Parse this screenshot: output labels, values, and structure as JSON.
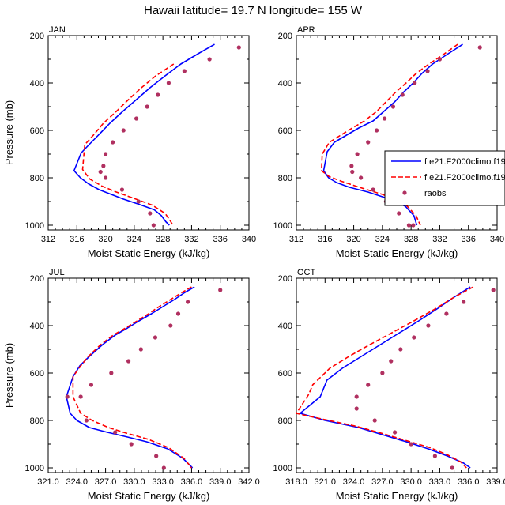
{
  "title": "Hawaii  latitude= 19.7 N longitude= 155 W",
  "legend": [
    {
      "label": "f.e21.F2000climo.f19",
      "color": "#0000ff",
      "style": "solid"
    },
    {
      "label": "f.e21.F2000climo.f19",
      "color": "#ff0000",
      "style": "dashed"
    },
    {
      "label": "raobs",
      "color": "#b03060",
      "style": "marker"
    }
  ],
  "chart_data": [
    {
      "type": "line",
      "panel_label": "JAN",
      "xlabel": "Moist Static Energy (kJ/kg)",
      "ylabel": "Pressure (mb)",
      "xlim": [
        312,
        340
      ],
      "ylim": [
        1020,
        200
      ],
      "xticks": [
        "312",
        "316",
        "320",
        "324",
        "328",
        "332",
        "336",
        "340"
      ],
      "yticks": [
        "200",
        "400",
        "600",
        "800",
        "1000"
      ],
      "series": [
        {
          "name": "f.e21.F2000climo.f19",
          "color": "#0000ff",
          "style": "solid",
          "x": [
            335.2,
            333.0,
            330.5,
            328.3,
            326.2,
            324.3,
            322.4,
            320.6,
            319.0,
            317.7,
            316.6,
            315.6,
            316.5,
            317.6,
            319.1,
            320.8,
            322.5,
            324.5,
            326.8,
            327.8,
            328.4,
            328.9
          ],
          "y": [
            237,
            275,
            320,
            370,
            420,
            470,
            520,
            570,
            620,
            660,
            695,
            770,
            800,
            825,
            850,
            870,
            890,
            910,
            935,
            960,
            985,
            1000
          ]
        },
        {
          "name": "f.e21.F2000climo.f19",
          "color": "#ff0000",
          "style": "dashed",
          "x": [
            329.5,
            327.0,
            325.0,
            323.2,
            321.5,
            319.7,
            318.3,
            317.1,
            316.8,
            317.8,
            319.5,
            321.5,
            323.8,
            326.5,
            328.3,
            329.0,
            329.4
          ],
          "y": [
            320,
            370,
            420,
            470,
            520,
            570,
            620,
            660,
            765,
            805,
            835,
            860,
            885,
            915,
            950,
            980,
            1000
          ]
        },
        {
          "name": "raobs",
          "color": "#b03060",
          "style": "marker",
          "x": [
            338.6,
            334.5,
            331.0,
            328.8,
            327.3,
            325.8,
            324.3,
            322.5,
            321.0,
            320.0,
            319.7,
            319.3,
            320.0,
            322.3,
            324.6,
            326.2,
            326.7
          ],
          "y": [
            250,
            300,
            350,
            400,
            450,
            500,
            550,
            600,
            650,
            700,
            750,
            775,
            800,
            850,
            900,
            950,
            1000
          ]
        }
      ]
    },
    {
      "type": "line",
      "panel_label": "APR",
      "xlabel": "Moist Static Energy (kJ/kg)",
      "ylabel": "",
      "xlim": [
        312,
        340
      ],
      "ylim": [
        1020,
        200
      ],
      "xticks": [
        "312",
        "316",
        "320",
        "324",
        "328",
        "332",
        "336",
        "340"
      ],
      "yticks": [
        "200",
        "400",
        "600",
        "800",
        "1000"
      ],
      "series": [
        {
          "name": "f.e21.F2000climo.f19",
          "color": "#0000ff",
          "style": "solid",
          "x": [
            335.2,
            333.0,
            331.0,
            329.5,
            328.3,
            326.9,
            325.7,
            324.2,
            322.7,
            320.7,
            319.0,
            317.3,
            316.3,
            315.8,
            316.5,
            317.6,
            319.4,
            322.0,
            325.0,
            327.2,
            328.4,
            328.8
          ],
          "y": [
            237,
            280,
            320,
            360,
            400,
            440,
            480,
            520,
            560,
            590,
            620,
            650,
            690,
            770,
            800,
            820,
            840,
            860,
            890,
            920,
            960,
            1000
          ]
        },
        {
          "name": "f.e21.F2000climo.f19",
          "color": "#ff0000",
          "style": "dashed",
          "x": [
            334.5,
            332.5,
            330.5,
            328.7,
            327.3,
            325.8,
            324.5,
            323.2,
            321.5,
            319.8,
            318.2,
            316.6,
            315.6,
            315.5,
            316.6,
            318.3,
            320.8,
            324.0,
            327.0,
            328.7,
            329.3
          ],
          "y": [
            237,
            280,
            320,
            360,
            400,
            440,
            480,
            520,
            560,
            590,
            620,
            650,
            700,
            770,
            795,
            815,
            840,
            870,
            905,
            960,
            1000
          ]
        },
        {
          "name": "raobs",
          "color": "#b03060",
          "style": "marker",
          "x": [
            337.6,
            332.0,
            330.3,
            328.5,
            326.8,
            325.5,
            324.3,
            323.2,
            322.0,
            320.5,
            319.7,
            319.8,
            321.0,
            322.7,
            324.5,
            326.3,
            327.7,
            328.3
          ],
          "y": [
            250,
            300,
            350,
            400,
            450,
            500,
            550,
            600,
            650,
            700,
            750,
            775,
            800,
            850,
            900,
            950,
            1000,
            1000
          ]
        }
      ]
    },
    {
      "type": "line",
      "panel_label": "JUL",
      "xlabel": "Moist Static Energy (kJ/kg)",
      "ylabel": "Pressure (mb)",
      "xlim": [
        321,
        342
      ],
      "ylim": [
        1020,
        200
      ],
      "xticks": [
        "321.0",
        "324.0",
        "327.0",
        "330.0",
        "333.0",
        "336.0",
        "339.0",
        "342.0"
      ],
      "yticks": [
        "200",
        "400",
        "600",
        "800",
        "1000"
      ],
      "series": [
        {
          "name": "f.e21.F2000climo.f19",
          "color": "#0000ff",
          "style": "solid",
          "x": [
            336.3,
            335.3,
            334.2,
            333.0,
            331.8,
            330.5,
            329.3,
            328.0,
            326.7,
            325.3,
            324.3,
            323.6,
            322.9,
            323.3,
            324.0,
            325.3,
            327.2,
            329.3,
            331.3,
            333.5,
            335.1,
            336.1
          ],
          "y": [
            237,
            260,
            290,
            320,
            350,
            380,
            410,
            440,
            480,
            530,
            570,
            615,
            700,
            770,
            800,
            830,
            850,
            870,
            890,
            920,
            960,
            1000
          ]
        },
        {
          "name": "f.e21.F2000climo.f19",
          "color": "#ff0000",
          "style": "dashed",
          "x": [
            336.0,
            335.0,
            333.8,
            332.6,
            331.5,
            330.3,
            329.1,
            327.8,
            326.5,
            325.2,
            324.4,
            323.6,
            323.6,
            324.4,
            325.6,
            327.3,
            329.3,
            331.5,
            333.6,
            335.2,
            336.0
          ],
          "y": [
            237,
            260,
            290,
            320,
            350,
            380,
            410,
            440,
            480,
            530,
            570,
            615,
            700,
            770,
            800,
            830,
            855,
            880,
            915,
            960,
            1000
          ]
        },
        {
          "name": "raobs",
          "color": "#b03060",
          "style": "marker",
          "x": [
            339.0,
            335.6,
            334.6,
            333.8,
            332.2,
            330.7,
            329.4,
            327.6,
            325.5,
            324.4,
            323.0,
            325.0,
            328.0,
            329.7,
            332.3,
            333.1
          ],
          "y": [
            250,
            300,
            350,
            400,
            450,
            500,
            550,
            600,
            650,
            700,
            700,
            800,
            850,
            900,
            950,
            1000
          ]
        }
      ]
    },
    {
      "type": "line",
      "panel_label": "OCT",
      "xlabel": "Moist Static Energy (kJ/kg)",
      "ylabel": "",
      "xlim": [
        318,
        339
      ],
      "ylim": [
        1020,
        200
      ],
      "xticks": [
        "318.0",
        "321.0",
        "324.0",
        "327.0",
        "330.0",
        "333.0",
        "336.0",
        "339.0"
      ],
      "yticks": [
        "200",
        "400",
        "600",
        "800",
        "1000"
      ],
      "series": [
        {
          "name": "f.e21.F2000climo.f19",
          "color": "#0000ff",
          "style": "solid",
          "x": [
            336.2,
            334.5,
            332.7,
            330.8,
            328.8,
            326.8,
            324.8,
            322.8,
            321.2,
            320.5,
            318.4,
            321.0,
            324.5,
            327.0,
            329.5,
            331.8,
            333.8,
            335.5,
            336.2
          ],
          "y": [
            237,
            280,
            330,
            380,
            430,
            480,
            530,
            580,
            630,
            700,
            770,
            800,
            830,
            860,
            890,
            920,
            950,
            980,
            1000
          ]
        },
        {
          "name": "f.e21.F2000climo.f19",
          "color": "#ff0000",
          "style": "dashed",
          "x": [
            336.5,
            334.5,
            332.5,
            330.3,
            328.0,
            325.7,
            323.5,
            321.5,
            319.7,
            319.3,
            318.0,
            320.8,
            324.3,
            327.0,
            329.5,
            332.0,
            333.8,
            335.2,
            335.8
          ],
          "y": [
            237,
            280,
            330,
            380,
            430,
            480,
            530,
            580,
            650,
            690,
            770,
            795,
            825,
            855,
            885,
            915,
            945,
            975,
            1000
          ]
        },
        {
          "name": "raobs",
          "color": "#b03060",
          "style": "marker",
          "x": [
            338.6,
            335.5,
            333.7,
            331.8,
            330.3,
            328.9,
            327.9,
            327.0,
            325.5,
            324.3,
            324.3,
            326.2,
            328.3,
            330.0,
            332.5,
            334.3
          ],
          "y": [
            250,
            300,
            350,
            400,
            450,
            500,
            550,
            600,
            650,
            700,
            750,
            800,
            850,
            900,
            950,
            1000
          ]
        }
      ]
    }
  ]
}
